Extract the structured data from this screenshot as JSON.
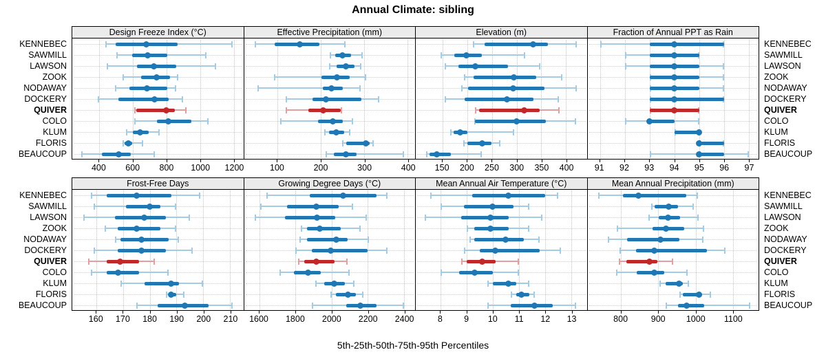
{
  "title": "Annual Climate: sibling",
  "caption": "5th-25th-50th-75th-95th Percentiles",
  "stations": [
    "KENNEBEC",
    "SAWMILL",
    "LAWSON",
    "ZOOK",
    "NODAWAY",
    "DOCKERY",
    "QUIVER",
    "COLO",
    "KLUM",
    "FLORIS",
    "BEAUCOUP"
  ],
  "highlight_station": "QUIVER",
  "percentile_labels": [
    "5th",
    "25th",
    "50th",
    "75th",
    "95th"
  ],
  "colors": {
    "series": "#1f77b4",
    "series_light": "#a3cbe3",
    "highlight": "#c0282a",
    "highlight_light": "#e29f9f",
    "header_bg": "#ebebeb",
    "grid": "#c8c8c8",
    "border": "#000000"
  },
  "chart_data": [
    {
      "type": "dotplot-interval",
      "row": 0,
      "title": "Design Freeze Index (°C)",
      "ticks": [
        400,
        600,
        800,
        1000,
        1200
      ],
      "domain": [
        240,
        1257
      ],
      "values": [
        [
          438,
          497,
          680,
          867,
          1193
        ],
        [
          500,
          597,
          690,
          806,
          1037
        ],
        [
          445,
          625,
          727,
          860,
          1094
        ],
        [
          537,
          649,
          742,
          823,
          870
        ],
        [
          493,
          580,
          683,
          806,
          860
        ],
        [
          390,
          513,
          730,
          812,
          900
        ],
        [
          610,
          620,
          797,
          850,
          920
        ],
        [
          610,
          745,
          812,
          950,
          1050
        ],
        [
          560,
          600,
          642,
          695,
          758
        ],
        [
          537,
          551,
          574,
          597,
          663
        ],
        [
          295,
          418,
          517,
          588,
          730
        ]
      ]
    },
    {
      "type": "dotplot-interval",
      "row": 0,
      "title": "Effective Precipitation (mm)",
      "ticks": [
        100,
        200,
        300,
        400
      ],
      "domain": [
        23,
        417
      ],
      "values": [
        [
          48,
          94,
          151,
          197,
          257
        ],
        [
          220,
          233,
          250,
          269,
          297
        ],
        [
          219,
          236,
          257,
          277,
          293
        ],
        [
          92,
          202,
          237,
          267,
          305
        ],
        [
          54,
          205,
          224,
          250,
          292
        ],
        [
          119,
          181,
          211,
          293,
          334
        ],
        [
          119,
          172,
          206,
          245,
          249
        ],
        [
          107,
          193,
          227,
          250,
          275
        ],
        [
          208,
          219,
          235,
          253,
          268
        ],
        [
          249,
          258,
          303,
          312,
          322
        ],
        [
          211,
          230,
          257,
          283,
          392
        ]
      ]
    },
    {
      "type": "dotplot-interval",
      "row": 0,
      "title": "Elevation (m)",
      "ticks": [
        150,
        200,
        250,
        300,
        350,
        400
      ],
      "domain": [
        96,
        442
      ],
      "values": [
        [
          212,
          235,
          333,
          364,
          422
        ],
        [
          146,
          174,
          199,
          230,
          318
        ],
        [
          154,
          182,
          216,
          282,
          348
        ],
        [
          193,
          213,
          295,
          340,
          393
        ],
        [
          188,
          202,
          293,
          357,
          422
        ],
        [
          154,
          195,
          280,
          334,
          385
        ],
        [
          216,
          224,
          315,
          346,
          387
        ],
        [
          214,
          216,
          300,
          359,
          420
        ],
        [
          166,
          172,
          186,
          200,
          295
        ],
        [
          192,
          200,
          230,
          249,
          267
        ],
        [
          117,
          124,
          139,
          167,
          230
        ]
      ]
    },
    {
      "type": "dotplot-interval",
      "row": 0,
      "title": "Fraction of Annual PPT as Rain",
      "ticks": [
        91,
        92,
        93,
        94,
        95,
        96,
        97
      ],
      "domain": [
        90.5,
        97.4
      ],
      "values": [
        [
          91,
          93,
          94,
          96,
          96
        ],
        [
          92,
          93,
          94,
          95,
          95
        ],
        [
          92,
          93,
          94,
          95,
          96
        ],
        [
          93,
          93,
          94,
          95,
          96
        ],
        [
          93,
          93,
          94,
          95,
          96
        ],
        [
          93,
          93,
          94,
          96,
          96
        ],
        [
          93,
          93,
          94,
          95,
          95
        ],
        [
          92,
          93,
          93,
          94,
          95
        ],
        [
          94,
          94,
          95,
          95,
          95
        ],
        [
          95,
          95,
          95,
          96,
          96
        ],
        [
          93,
          95,
          95,
          96,
          97
        ]
      ]
    },
    {
      "type": "dotplot-interval",
      "row": 1,
      "title": "Frost-Free Days",
      "ticks": [
        160,
        170,
        180,
        190,
        200,
        210
      ],
      "domain": [
        151,
        215
      ],
      "values": [
        [
          158,
          164,
          175,
          188,
          199
        ],
        [
          159,
          171,
          180,
          184,
          190
        ],
        [
          155,
          167,
          178,
          186,
          195
        ],
        [
          163,
          168,
          175,
          184,
          190
        ],
        [
          167,
          169,
          177,
          187,
          191
        ],
        [
          159,
          168,
          177,
          186,
          196
        ],
        [
          157,
          164,
          169,
          176,
          182
        ],
        [
          158,
          164,
          168,
          176,
          187
        ],
        [
          169,
          178,
          188,
          191,
          200
        ],
        [
          186,
          187,
          188,
          190,
          193
        ],
        [
          175,
          183,
          193,
          202,
          211
        ]
      ]
    },
    {
      "type": "dotplot-interval",
      "row": 1,
      "title": "Growing Degree Days (°C)",
      "ticks": [
        1600,
        1800,
        2000,
        2200,
        2400
      ],
      "domain": [
        1515,
        2462
      ],
      "values": [
        [
          1640,
          1880,
          2065,
          2250,
          2310
        ],
        [
          1605,
          1755,
          1915,
          2040,
          2120
        ],
        [
          1575,
          1740,
          1920,
          2020,
          2195
        ],
        [
          1830,
          1865,
          1935,
          2050,
          2160
        ],
        [
          1820,
          1865,
          2025,
          2090,
          2205
        ],
        [
          1800,
          1890,
          1995,
          2200,
          2310
        ],
        [
          1815,
          1850,
          1915,
          2015,
          2090
        ],
        [
          1713,
          1790,
          1870,
          1940,
          2100
        ],
        [
          1910,
          1960,
          2015,
          2075,
          2125
        ],
        [
          1995,
          2025,
          2090,
          2135,
          2175
        ],
        [
          1890,
          2080,
          2160,
          2250,
          2400
        ]
      ]
    },
    {
      "type": "dotplot-interval",
      "row": 1,
      "title": "Mean Annual Air Temperature (°C)",
      "ticks": [
        8,
        9,
        10,
        11,
        12,
        13
      ],
      "domain": [
        7.05,
        13.6
      ],
      "values": [
        [
          7.6,
          9.2,
          10.6,
          12.0,
          12.5
        ],
        [
          8.0,
          8.9,
          10.0,
          10.8,
          11.4
        ],
        [
          7.4,
          8.8,
          9.9,
          10.6,
          11.9
        ],
        [
          9.0,
          9.3,
          9.9,
          10.6,
          11.4
        ],
        [
          9.1,
          9.3,
          10.5,
          11.2,
          11.8
        ],
        [
          8.9,
          9.5,
          10.1,
          11.8,
          12.6
        ],
        [
          8.8,
          9.0,
          9.6,
          10.1,
          11.0
        ],
        [
          8.0,
          8.7,
          9.3,
          10.0,
          11.0
        ],
        [
          9.8,
          10.0,
          10.6,
          10.9,
          11.4
        ],
        [
          10.7,
          10.9,
          11.1,
          11.4,
          11.6
        ],
        [
          9.8,
          10.7,
          11.6,
          12.3,
          13.2
        ]
      ]
    },
    {
      "type": "dotplot-interval",
      "row": 1,
      "title": "Mean Annual Precipitation (mm)",
      "ticks": [
        800,
        900,
        1000,
        1100
      ],
      "domain": [
        710,
        1169
      ],
      "values": [
        [
          739,
          806,
          847,
          975,
          1006
        ],
        [
          880,
          891,
          928,
          952,
          995
        ],
        [
          874,
          902,
          927,
          958,
          1009
        ],
        [
          788,
          884,
          920,
          969,
          1023
        ],
        [
          764,
          816,
          905,
          957,
          1021
        ],
        [
          796,
          840,
          890,
          1031,
          1080
        ],
        [
          794,
          815,
          877,
          898,
          940
        ],
        [
          787,
          842,
          890,
          916,
          978
        ],
        [
          903,
          920,
          956,
          965,
          982
        ],
        [
          956,
          965,
          1009,
          1017,
          1042
        ],
        [
          919,
          953,
          976,
          1024,
          1146
        ]
      ]
    }
  ]
}
